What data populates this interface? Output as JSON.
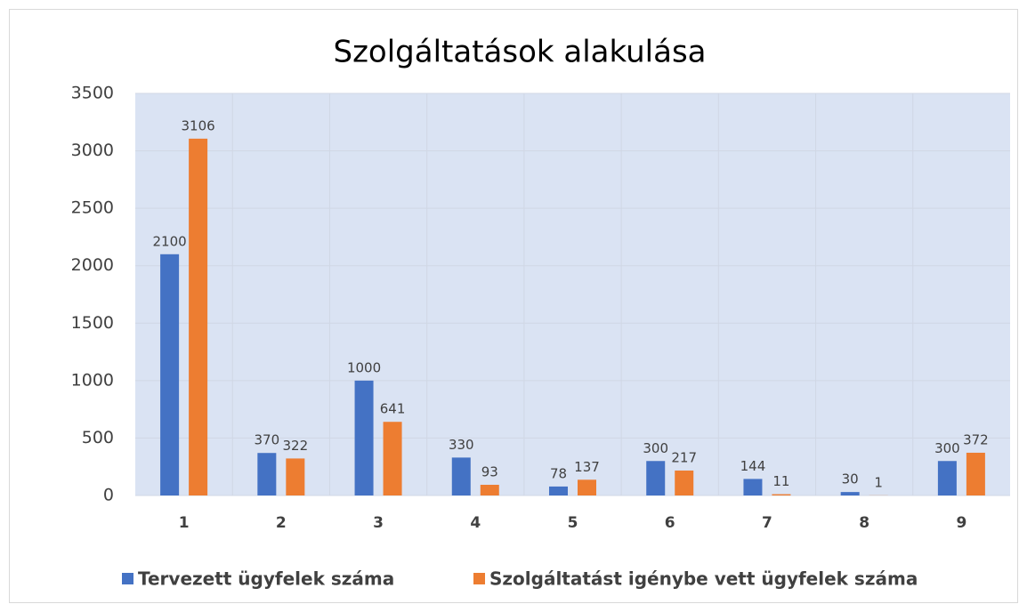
{
  "chart_data": {
    "type": "bar",
    "title": "Szolgáltatások alakulása",
    "categories": [
      "1",
      "2",
      "3",
      "4",
      "5",
      "6",
      "7",
      "8",
      "9"
    ],
    "series": [
      {
        "name": "Tervezett ügyfelek száma",
        "color": "#4472c4",
        "values": [
          2100,
          370,
          1000,
          330,
          78,
          300,
          144,
          30,
          300
        ]
      },
      {
        "name": "Szolgáltatást igénybe vett ügyfelek száma",
        "color": "#ed7d31",
        "values": [
          3106,
          322,
          641,
          93,
          137,
          217,
          11,
          1,
          372
        ]
      }
    ],
    "ylim": [
      0,
      3500
    ],
    "yticks": [
      0,
      500,
      1000,
      1500,
      2000,
      2500,
      3000,
      3500
    ],
    "grid": true,
    "legend": "bottom"
  }
}
